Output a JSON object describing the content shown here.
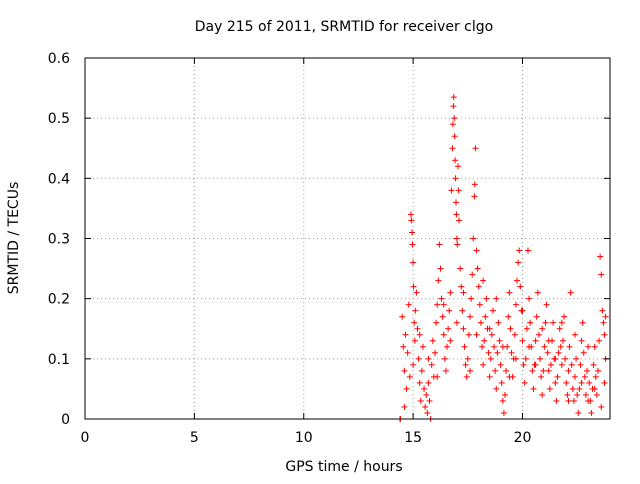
{
  "chart_data": {
    "type": "scatter",
    "title": "Day 215 of 2011, SRMTID for receiver clgo",
    "xlabel": "GPS time / hours",
    "ylabel": "SRMTID / TECUs",
    "xlim": [
      0,
      24
    ],
    "ylim": [
      0,
      0.6
    ],
    "x_ticks": [
      0,
      5,
      10,
      15,
      20
    ],
    "y_ticks": [
      0,
      0.1,
      0.2,
      0.3,
      0.4,
      0.5,
      0.6
    ],
    "grid": true,
    "grid_style": "dotted",
    "marker": "plus",
    "point_color": "#ff0000",
    "series": [
      {
        "points": [
          [
            14.4,
            0.0
          ],
          [
            14.42,
            0.0
          ],
          [
            14.5,
            0.17
          ],
          [
            14.55,
            0.12
          ],
          [
            14.6,
            0.08
          ],
          [
            14.65,
            0.14
          ],
          [
            14.7,
            0.05
          ],
          [
            14.75,
            0.11
          ],
          [
            14.8,
            0.19
          ],
          [
            14.85,
            0.07
          ],
          [
            14.9,
            0.34
          ],
          [
            14.92,
            0.33
          ],
          [
            14.95,
            0.31
          ],
          [
            14.97,
            0.29
          ],
          [
            15.0,
            0.26
          ],
          [
            15.02,
            0.22
          ],
          [
            15.05,
            0.16
          ],
          [
            15.08,
            0.13
          ],
          [
            15.1,
            0.18
          ],
          [
            15.15,
            0.21
          ],
          [
            15.2,
            0.15
          ],
          [
            15.25,
            0.1
          ],
          [
            15.3,
            0.06
          ],
          [
            15.35,
            0.03
          ],
          [
            15.4,
            0.08
          ],
          [
            15.45,
            0.12
          ],
          [
            15.5,
            0.05
          ],
          [
            15.55,
            0.02
          ],
          [
            15.6,
            0.04
          ],
          [
            15.65,
            0.01
          ],
          [
            15.7,
            0.06
          ],
          [
            15.75,
            0.03
          ],
          [
            15.8,
            0.0
          ],
          [
            15.85,
            0.09
          ],
          [
            15.9,
            0.13
          ],
          [
            15.95,
            0.07
          ],
          [
            16.0,
            0.11
          ],
          [
            16.05,
            0.16
          ],
          [
            16.1,
            0.19
          ],
          [
            16.15,
            0.23
          ],
          [
            16.2,
            0.29
          ],
          [
            16.25,
            0.25
          ],
          [
            16.3,
            0.2
          ],
          [
            16.35,
            0.17
          ],
          [
            16.4,
            0.14
          ],
          [
            16.45,
            0.1
          ],
          [
            16.5,
            0.08
          ],
          [
            16.55,
            0.12
          ],
          [
            16.6,
            0.15
          ],
          [
            16.65,
            0.18
          ],
          [
            16.7,
            0.21
          ],
          [
            16.75,
            0.38
          ],
          [
            16.8,
            0.45
          ],
          [
            16.82,
            0.49
          ],
          [
            16.84,
            0.52
          ],
          [
            16.86,
            0.535
          ],
          [
            16.88,
            0.5
          ],
          [
            16.9,
            0.47
          ],
          [
            16.92,
            0.43
          ],
          [
            16.94,
            0.4
          ],
          [
            16.96,
            0.36
          ],
          [
            16.98,
            0.34
          ],
          [
            17.0,
            0.3
          ],
          [
            17.02,
            0.29
          ],
          [
            17.05,
            0.42
          ],
          [
            17.08,
            0.38
          ],
          [
            17.1,
            0.33
          ],
          [
            17.15,
            0.25
          ],
          [
            17.2,
            0.22
          ],
          [
            17.25,
            0.18
          ],
          [
            17.3,
            0.15
          ],
          [
            17.35,
            0.12
          ],
          [
            17.4,
            0.09
          ],
          [
            17.45,
            0.07
          ],
          [
            17.5,
            0.1
          ],
          [
            17.55,
            0.14
          ],
          [
            17.6,
            0.17
          ],
          [
            17.65,
            0.2
          ],
          [
            17.7,
            0.24
          ],
          [
            17.75,
            0.3
          ],
          [
            17.8,
            0.37
          ],
          [
            17.82,
            0.39
          ],
          [
            17.85,
            0.45
          ],
          [
            17.9,
            0.28
          ],
          [
            17.95,
            0.25
          ],
          [
            18.0,
            0.22
          ],
          [
            18.05,
            0.19
          ],
          [
            18.1,
            0.16
          ],
          [
            18.15,
            0.12
          ],
          [
            18.2,
            0.09
          ],
          [
            18.25,
            0.13
          ],
          [
            18.3,
            0.17
          ],
          [
            18.35,
            0.2
          ],
          [
            18.4,
            0.15
          ],
          [
            18.45,
            0.11
          ],
          [
            18.5,
            0.07
          ],
          [
            18.55,
            0.1
          ],
          [
            18.6,
            0.14
          ],
          [
            18.65,
            0.18
          ],
          [
            18.7,
            0.12
          ],
          [
            18.75,
            0.08
          ],
          [
            18.8,
            0.05
          ],
          [
            18.85,
            0.11
          ],
          [
            18.9,
            0.16
          ],
          [
            18.95,
            0.13
          ],
          [
            19.0,
            0.09
          ],
          [
            19.05,
            0.06
          ],
          [
            19.1,
            0.03
          ],
          [
            19.15,
            0.01
          ],
          [
            19.2,
            0.04
          ],
          [
            19.25,
            0.08
          ],
          [
            19.3,
            0.12
          ],
          [
            19.35,
            0.17
          ],
          [
            19.4,
            0.21
          ],
          [
            19.45,
            0.15
          ],
          [
            19.5,
            0.11
          ],
          [
            19.55,
            0.07
          ],
          [
            19.6,
            0.1
          ],
          [
            19.65,
            0.14
          ],
          [
            19.7,
            0.19
          ],
          [
            19.75,
            0.23
          ],
          [
            19.8,
            0.26
          ],
          [
            19.85,
            0.28
          ],
          [
            19.9,
            0.22
          ],
          [
            19.95,
            0.18
          ],
          [
            20.0,
            0.13
          ],
          [
            20.05,
            0.09
          ],
          [
            20.1,
            0.06
          ],
          [
            20.15,
            0.1
          ],
          [
            20.2,
            0.15
          ],
          [
            20.25,
            0.28
          ],
          [
            20.3,
            0.2
          ],
          [
            20.35,
            0.16
          ],
          [
            20.4,
            0.12
          ],
          [
            20.45,
            0.08
          ],
          [
            20.5,
            0.05
          ],
          [
            20.55,
            0.09
          ],
          [
            20.6,
            0.13
          ],
          [
            20.65,
            0.17
          ],
          [
            20.7,
            0.21
          ],
          [
            20.75,
            0.14
          ],
          [
            20.8,
            0.1
          ],
          [
            20.85,
            0.07
          ],
          [
            20.9,
            0.04
          ],
          [
            20.95,
            0.08
          ],
          [
            21.0,
            0.12
          ],
          [
            21.05,
            0.16
          ],
          [
            21.1,
            0.19
          ],
          [
            21.15,
            0.11
          ],
          [
            21.2,
            0.08
          ],
          [
            21.25,
            0.05
          ],
          [
            21.3,
            0.09
          ],
          [
            21.35,
            0.13
          ],
          [
            21.4,
            0.16
          ],
          [
            21.45,
            0.1
          ],
          [
            21.5,
            0.06
          ],
          [
            21.55,
            0.03
          ],
          [
            21.6,
            0.07
          ],
          [
            21.65,
            0.11
          ],
          [
            21.7,
            0.15
          ],
          [
            21.75,
            0.12
          ],
          [
            21.8,
            0.09
          ],
          [
            21.85,
            0.13
          ],
          [
            21.9,
            0.17
          ],
          [
            21.95,
            0.1
          ],
          [
            22.0,
            0.06
          ],
          [
            22.05,
            0.04
          ],
          [
            22.1,
            0.08
          ],
          [
            22.15,
            0.12
          ],
          [
            22.2,
            0.21
          ],
          [
            22.25,
            0.09
          ],
          [
            22.3,
            0.05
          ],
          [
            22.35,
            0.03
          ],
          [
            22.4,
            0.07
          ],
          [
            22.45,
            0.1
          ],
          [
            22.5,
            0.04
          ],
          [
            22.55,
            0.01
          ],
          [
            22.6,
            0.05
          ],
          [
            22.65,
            0.09
          ],
          [
            22.7,
            0.13
          ],
          [
            22.75,
            0.16
          ],
          [
            22.8,
            0.11
          ],
          [
            22.85,
            0.07
          ],
          [
            22.9,
            0.04
          ],
          [
            22.95,
            0.08
          ],
          [
            23.0,
            0.12
          ],
          [
            23.05,
            0.06
          ],
          [
            23.1,
            0.03
          ],
          [
            23.15,
            0.01
          ],
          [
            23.2,
            0.05
          ],
          [
            23.25,
            0.09
          ],
          [
            23.3,
            0.12
          ],
          [
            23.35,
            0.07
          ],
          [
            23.4,
            0.04
          ],
          [
            23.45,
            0.08
          ],
          [
            23.5,
            0.13
          ],
          [
            23.55,
            0.27
          ],
          [
            23.6,
            0.24
          ],
          [
            23.65,
            0.18
          ],
          [
            23.7,
            0.16
          ],
          [
            23.75,
            0.14
          ],
          [
            23.8,
            0.1
          ],
          [
            14.6,
            0.02
          ],
          [
            15.0,
            0.09
          ],
          [
            15.3,
            0.14
          ],
          [
            15.7,
            0.1
          ],
          [
            16.1,
            0.07
          ],
          [
            16.4,
            0.19
          ],
          [
            16.7,
            0.13
          ],
          [
            17.0,
            0.16
          ],
          [
            17.3,
            0.21
          ],
          [
            17.6,
            0.08
          ],
          [
            17.9,
            0.14
          ],
          [
            18.2,
            0.23
          ],
          [
            18.5,
            0.15
          ],
          [
            18.8,
            0.2
          ],
          [
            19.1,
            0.12
          ],
          [
            19.4,
            0.07
          ],
          [
            19.7,
            0.1
          ],
          [
            20.0,
            0.18
          ],
          [
            20.3,
            0.12
          ],
          [
            20.6,
            0.09
          ],
          [
            20.9,
            0.15
          ],
          [
            21.2,
            0.13
          ],
          [
            21.5,
            0.1
          ],
          [
            21.8,
            0.16
          ],
          [
            22.1,
            0.03
          ],
          [
            22.4,
            0.14
          ],
          [
            22.7,
            0.06
          ],
          [
            23.0,
            0.03
          ],
          [
            23.3,
            0.05
          ],
          [
            23.6,
            0.02
          ],
          [
            23.75,
            0.06
          ],
          [
            23.8,
            0.17
          ]
        ]
      }
    ]
  }
}
